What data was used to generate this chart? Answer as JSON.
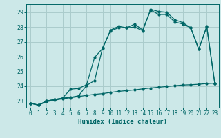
{
  "title": "",
  "xlabel": "Humidex (Indice chaleur)",
  "ylabel": "",
  "bg_color": "#cce8e8",
  "grid_color": "#aacccc",
  "line_color": "#006666",
  "xlim": [
    -0.5,
    23.5
  ],
  "ylim": [
    22.55,
    29.55
  ],
  "yticks": [
    23,
    24,
    25,
    26,
    27,
    28,
    29
  ],
  "xticks": [
    0,
    1,
    2,
    3,
    4,
    5,
    6,
    7,
    8,
    9,
    10,
    11,
    12,
    13,
    14,
    15,
    16,
    17,
    18,
    19,
    20,
    21,
    22,
    23
  ],
  "curve1_x": [
    0,
    1,
    2,
    3,
    4,
    5,
    6,
    7,
    8,
    9,
    10,
    11,
    12,
    13,
    14,
    15,
    16,
    17,
    18,
    19,
    20,
    21,
    22,
    23
  ],
  "curve1_y": [
    22.85,
    22.72,
    22.95,
    23.05,
    23.15,
    23.22,
    23.3,
    23.38,
    23.45,
    23.5,
    23.58,
    23.65,
    23.7,
    23.75,
    23.82,
    23.88,
    23.93,
    23.98,
    24.03,
    24.08,
    24.1,
    24.13,
    24.18,
    24.2
  ],
  "curve2_x": [
    0,
    1,
    2,
    3,
    4,
    5,
    6,
    7,
    8,
    9,
    10,
    11,
    12,
    13,
    14,
    15,
    16,
    17,
    18,
    19,
    20,
    21,
    22,
    23
  ],
  "curve2_y": [
    22.85,
    22.72,
    23.0,
    23.1,
    23.2,
    23.8,
    23.85,
    24.1,
    25.95,
    26.55,
    27.8,
    28.05,
    27.95,
    28.2,
    27.8,
    29.15,
    28.85,
    28.85,
    28.35,
    28.2,
    27.95,
    26.5,
    28.0,
    24.2
  ],
  "curve3_x": [
    0,
    1,
    2,
    3,
    4,
    5,
    6,
    7,
    8,
    9,
    10,
    11,
    12,
    13,
    14,
    15,
    16,
    17,
    18,
    19,
    20,
    21,
    22,
    23
  ],
  "curve3_y": [
    22.85,
    22.72,
    23.0,
    23.1,
    23.2,
    23.25,
    23.35,
    24.05,
    24.38,
    26.6,
    27.75,
    27.95,
    27.95,
    28.0,
    27.75,
    29.2,
    29.05,
    29.0,
    28.5,
    28.3,
    27.95,
    26.5,
    28.05,
    24.2
  ]
}
